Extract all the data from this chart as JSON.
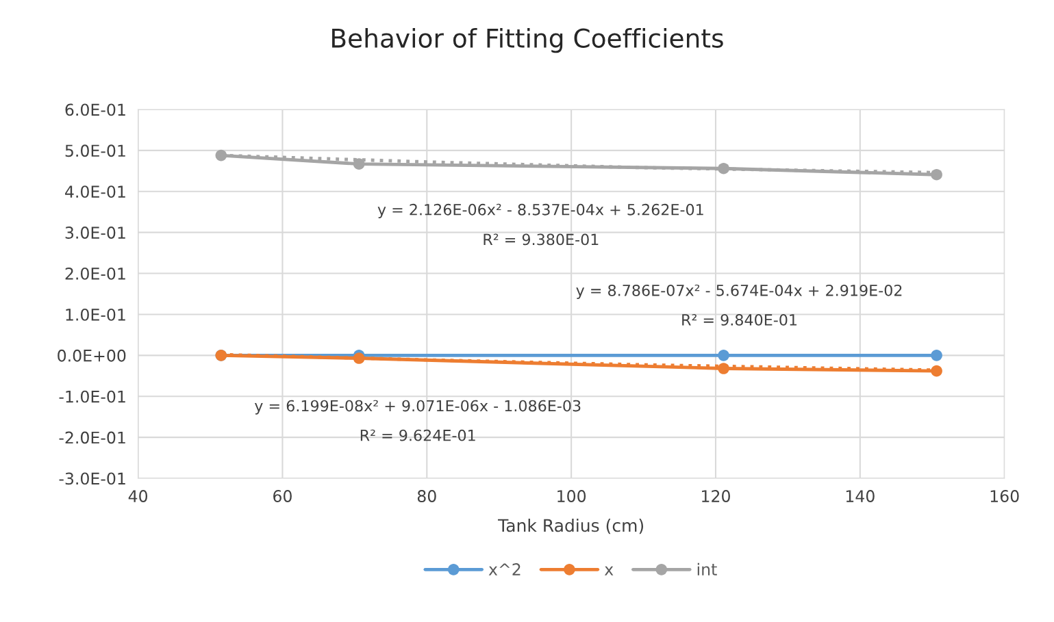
{
  "chart_data": {
    "type": "line",
    "title": "Behavior of Fitting Coefficients",
    "xlabel": "Tank Radius (cm)",
    "x": [
      51.5,
      70.6,
      121.1,
      150.6
    ],
    "series": [
      {
        "name": "x^2",
        "color": "#5b9bd5",
        "values": [
          0.0,
          0.0,
          0.0,
          0.0
        ]
      },
      {
        "name": "x",
        "color": "#ed7d31",
        "values": [
          0.0,
          -0.007,
          -0.032,
          -0.038
        ]
      },
      {
        "name": "int",
        "color": "#a5a5a5",
        "values": [
          0.488,
          0.467,
          0.456,
          0.441
        ]
      },
      {
        "type": "line",
        "color": "#ed7d31",
        "line_style": "dotted",
        "marker": "none",
        "x": [
          51.5,
          80,
          110,
          150.6
        ],
        "values": [
          0.002,
          -0.011,
          -0.023,
          -0.036
        ]
      },
      {
        "type": "line",
        "color": "#a5a5a5",
        "line_style": "dotted",
        "marker": "none",
        "x": [
          51.5,
          80,
          110,
          150.6
        ],
        "values": [
          0.488,
          0.472,
          0.458,
          0.446
        ]
      }
    ],
    "xlim": [
      40,
      160
    ],
    "xticks": [
      40,
      60,
      80,
      100,
      120,
      140,
      160
    ],
    "ylim": [
      -0.3,
      0.6
    ],
    "yticks": [
      {
        "value": -0.3,
        "label": "-3.0E-01"
      },
      {
        "value": -0.2,
        "label": "-2.0E-01"
      },
      {
        "value": -0.1,
        "label": "-1.0E-01"
      },
      {
        "value": 0.0,
        "label": "0.0E+00"
      },
      {
        "value": 0.1,
        "label": "1.0E-01"
      },
      {
        "value": 0.2,
        "label": "2.0E-01"
      },
      {
        "value": 0.3,
        "label": "3.0E-01"
      },
      {
        "value": 0.4,
        "label": "4.0E-01"
      },
      {
        "value": 0.5,
        "label": "5.0E-01"
      },
      {
        "value": 0.6,
        "label": "6.0E-01"
      }
    ],
    "annotations": [
      "y = 2.126E-06x² - 8.537E-04x + 5.262E-01",
      "R² = 9.380E-01",
      "y = 8.786E-07x² - 5.674E-04x + 2.919E-02",
      "R² = 9.840E-01",
      "y = 6.199E-08x² + 9.071E-06x - 1.086E-03",
      "R² = 9.624E-01"
    ],
    "grid": true,
    "legend": "bottom",
    "marker": "circle",
    "line_style": "solid"
  }
}
